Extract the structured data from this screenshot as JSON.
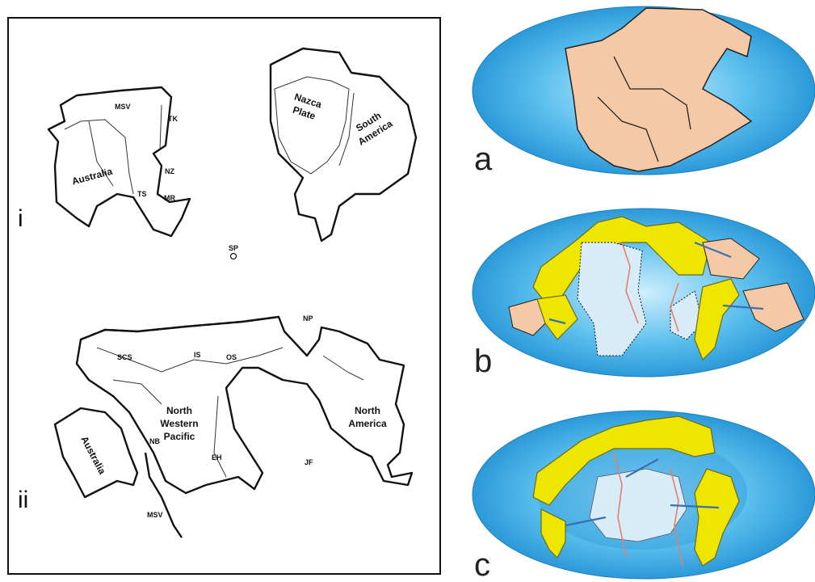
{
  "left_panel": {
    "roman_labels": [
      "i",
      "ii"
    ],
    "labels": [
      {
        "lines": [
          "MSV"
        ]
      },
      {
        "lines": [
          "TK"
        ]
      },
      {
        "lines": [
          "Nazca",
          "Plate"
        ]
      },
      {
        "lines": [
          "South",
          "America"
        ]
      },
      {
        "lines": [
          "Australia"
        ]
      },
      {
        "lines": [
          "NZ"
        ]
      },
      {
        "lines": [
          "TS"
        ]
      },
      {
        "lines": [
          "MR"
        ]
      },
      {
        "lines": [
          "SP"
        ]
      },
      {
        "lines": [
          "NP"
        ]
      },
      {
        "lines": [
          "SCS"
        ]
      },
      {
        "lines": [
          "IS"
        ]
      },
      {
        "lines": [
          "OS"
        ]
      },
      {
        "lines": [
          "North",
          "Western",
          "Pacific"
        ]
      },
      {
        "lines": [
          "North",
          "America"
        ]
      },
      {
        "lines": [
          "NB"
        ]
      },
      {
        "lines": [
          "EH"
        ]
      },
      {
        "lines": [
          "JF"
        ]
      },
      {
        "lines": [
          "MSV"
        ]
      },
      {
        "lines": [
          "Australia"
        ]
      }
    ]
  },
  "right_panel": {
    "panel_labels": [
      "a",
      "b",
      "c"
    ]
  }
}
